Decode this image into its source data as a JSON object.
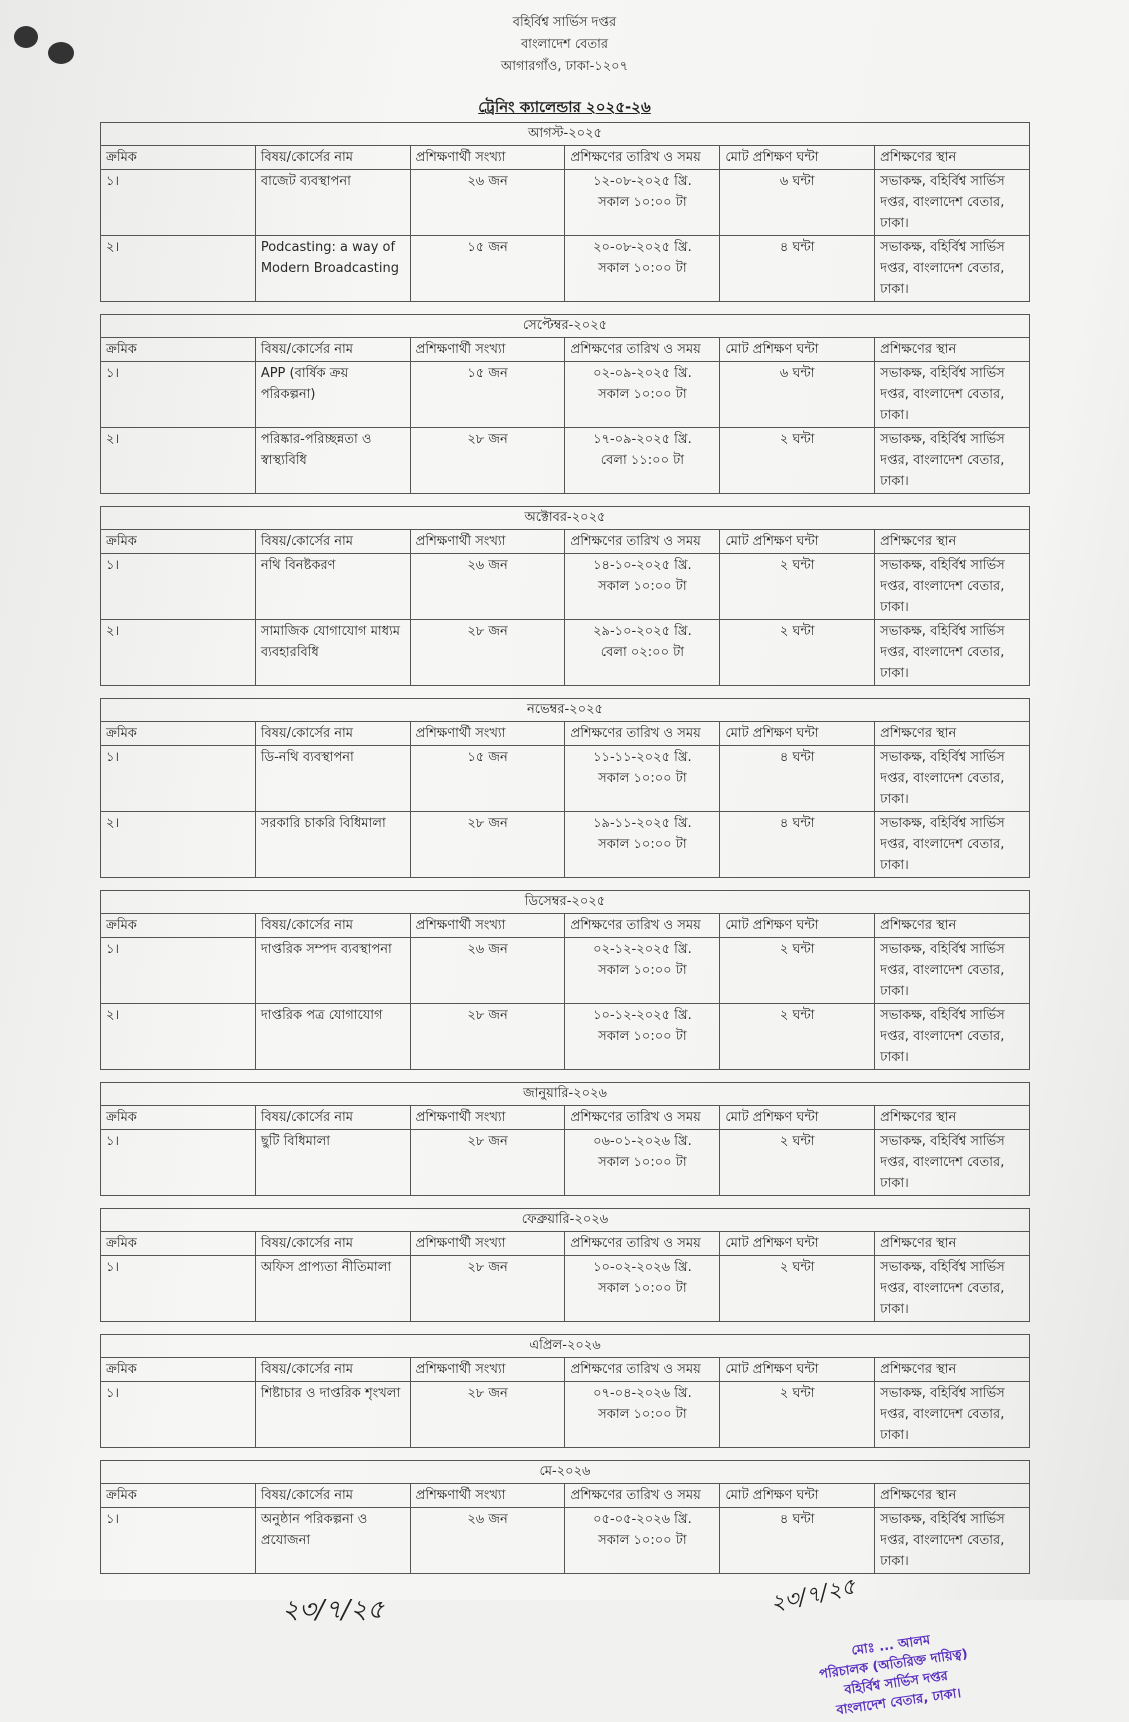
{
  "header": {
    "lines": [
      "বহির্বিশ্ব সার্ভিস দপ্তর",
      "বাংলাদেশ বেতার",
      "আগারগাঁও, ঢাকা-১২০৭"
    ],
    "title": "ট্রেনিং ক্যালেন্ডার ২০২৫-২৬"
  },
  "columns": [
    "ক্রমিক",
    "বিষয়/কোর্সের নাম",
    "প্রশিক্ষণার্থী সংখ্যা",
    "প্রশিক্ষণের তারিখ ও সময়",
    "মোট প্রশিক্ষণ ঘন্টা",
    "প্রশিক্ষণের স্থান"
  ],
  "months": [
    {
      "month": "আগস্ট-২০২৫",
      "rows": [
        {
          "sl": "১।",
          "course": "বাজেট ব্যবস্থাপনা",
          "participants": "২৬ জন",
          "date": "১২-০৮-২০২৫ খ্রি.",
          "time": "সকাল ১০:০০ টা",
          "hours": "৬ ঘন্টা",
          "venue": "সভাকক্ষ, বহির্বিশ্ব সার্ভিস দপ্তর, বাংলাদেশ বেতার, ঢাকা।"
        },
        {
          "sl": "২।",
          "course": "Podcasting: a way of Modern Broadcasting",
          "participants": "১৫ জন",
          "date": "২০-০৮-২০২৫ খ্রি.",
          "time": "সকাল ১০:০০ টা",
          "hours": "৪ ঘন্টা",
          "venue": "সভাকক্ষ, বহির্বিশ্ব সার্ভিস দপ্তর, বাংলাদেশ বেতার, ঢাকা।"
        }
      ]
    },
    {
      "month": "সেপ্টেম্বর-২০২৫",
      "rows": [
        {
          "sl": "১।",
          "course": "APP (বার্ষিক ক্রয় পরিকল্পনা)",
          "participants": "১৫ জন",
          "date": "০২-০৯-২০২৫ খ্রি.",
          "time": "সকাল ১০:০০ টা",
          "hours": "৬ ঘন্টা",
          "venue": "সভাকক্ষ, বহির্বিশ্ব সার্ভিস দপ্তর, বাংলাদেশ বেতার, ঢাকা।"
        },
        {
          "sl": "২।",
          "course": "পরিষ্কার-পরিচ্ছন্নতা ও স্বাস্থ্যবিধি",
          "participants": "২৮ জন",
          "date": "১৭-০৯-২০২৫ খ্রি.",
          "time": "বেলা ১১:০০ টা",
          "hours": "২ ঘন্টা",
          "venue": "সভাকক্ষ, বহির্বিশ্ব সার্ভিস দপ্তর, বাংলাদেশ বেতার, ঢাকা।"
        }
      ]
    },
    {
      "month": "অক্টোবর-২০২৫",
      "rows": [
        {
          "sl": "১।",
          "course": "নথি বিনষ্টকরণ",
          "participants": "২৬ জন",
          "date": "১৪-১০-২০২৫ খ্রি.",
          "time": "সকাল ১০:০০ টা",
          "hours": "২ ঘন্টা",
          "venue": "সভাকক্ষ, বহির্বিশ্ব সার্ভিস দপ্তর, বাংলাদেশ বেতার, ঢাকা।"
        },
        {
          "sl": "২।",
          "course": "সামাজিক যোগাযোগ মাধ্যম ব্যবহারবিধি",
          "participants": "২৮ জন",
          "date": "২৯-১০-২০২৫ খ্রি.",
          "time": "বেলা ০২:০০ টা",
          "hours": "২ ঘন্টা",
          "venue": "সভাকক্ষ, বহির্বিশ্ব সার্ভিস দপ্তর, বাংলাদেশ বেতার, ঢাকা।"
        }
      ]
    },
    {
      "month": "নভেম্বর-২০২৫",
      "rows": [
        {
          "sl": "১।",
          "course": "ডি-নথি ব্যবস্থাপনা",
          "participants": "১৫ জন",
          "date": "১১-১১-২০২৫ খ্রি.",
          "time": "সকাল ১০:০০ টা",
          "hours": "৪ ঘন্টা",
          "venue": "সভাকক্ষ, বহির্বিশ্ব সার্ভিস দপ্তর, বাংলাদেশ বেতার, ঢাকা।"
        },
        {
          "sl": "২।",
          "course": "সরকারি চাকরি বিধিমালা",
          "participants": "২৮ জন",
          "date": "১৯-১১-২০২৫ খ্রি.",
          "time": "সকাল ১০:০০ টা",
          "hours": "৪ ঘন্টা",
          "venue": "সভাকক্ষ, বহির্বিশ্ব সার্ভিস দপ্তর, বাংলাদেশ বেতার, ঢাকা।"
        }
      ]
    },
    {
      "month": "ডিসেম্বর-২০২৫",
      "rows": [
        {
          "sl": "১।",
          "course": "দাপ্তরিক সম্পদ ব্যবস্থাপনা",
          "participants": "২৬ জন",
          "date": "০২-১২-২০২৫ খ্রি.",
          "time": "সকাল ১০:০০ টা",
          "hours": "২ ঘন্টা",
          "venue": "সভাকক্ষ, বহির্বিশ্ব সার্ভিস দপ্তর, বাংলাদেশ বেতার, ঢাকা।"
        },
        {
          "sl": "২।",
          "course": "দাপ্তরিক পত্র যোগাযোগ",
          "participants": "২৮ জন",
          "date": "১০-১২-২০২৫ খ্রি.",
          "time": "সকাল ১০:০০ টা",
          "hours": "২ ঘন্টা",
          "venue": "সভাকক্ষ, বহির্বিশ্ব সার্ভিস দপ্তর, বাংলাদেশ বেতার, ঢাকা।"
        }
      ]
    },
    {
      "month": "জানুয়ারি-২০২৬",
      "rows": [
        {
          "sl": "১।",
          "course": "ছুটি বিধিমালা",
          "participants": "২৮ জন",
          "date": "০৬-০১-২০২৬ খ্রি.",
          "time": "সকাল ১০:০০ টা",
          "hours": "২ ঘন্টা",
          "venue": "সভাকক্ষ, বহির্বিশ্ব সার্ভিস দপ্তর, বাংলাদেশ বেতার, ঢাকা।"
        }
      ]
    },
    {
      "month": "ফেব্রুয়ারি-২০২৬",
      "rows": [
        {
          "sl": "১।",
          "course": "অফিস প্রাপ্যতা নীতিমালা",
          "participants": "২৮ জন",
          "date": "১০-০২-২০২৬ খ্রি.",
          "time": "সকাল ১০:০০ টা",
          "hours": "২ ঘন্টা",
          "venue": "সভাকক্ষ, বহির্বিশ্ব সার্ভিস দপ্তর, বাংলাদেশ বেতার, ঢাকা।"
        }
      ]
    },
    {
      "month": "এপ্রিল-২০২৬",
      "rows": [
        {
          "sl": "১।",
          "course": "শিষ্টাচার ও দাপ্তরিক শৃংখলা",
          "participants": "২৮ জন",
          "date": "০৭-০৪-২০২৬ খ্রি.",
          "time": "সকাল ১০:০০ টা",
          "hours": "২ ঘন্টা",
          "venue": "সভাকক্ষ, বহির্বিশ্ব সার্ভিস দপ্তর, বাংলাদেশ বেতার, ঢাকা।"
        }
      ]
    },
    {
      "month": "মে-২০২৬",
      "rows": [
        {
          "sl": "১।",
          "course": "অনুষ্ঠান পরিকল্পনা ও প্রযোজনা",
          "participants": "২৬ জন",
          "date": "০৫-০৫-২০২৬ খ্রি.",
          "time": "সকাল ১০:০০ টা",
          "hours": "৪ ঘন্টা",
          "venue": "সভাকক্ষ, বহির্বিশ্ব সার্ভিস দপ্তর, বাংলাদেশ বেতার, ঢাকা।"
        }
      ]
    }
  ],
  "signatures": {
    "left_initial": "২৩/৭/২৫",
    "right_date": "২৩/৭/২৫",
    "stamp_lines": [
      "মোঃ ... আলম",
      "পরিচালক (অতিরিক্ত দায়িত্ব)",
      "বহির্বিশ্ব সার্ভিস দপ্তর",
      "বাংলাদেশ বেতার, ঢাকা।"
    ],
    "stamp_color": "#5a2fc0"
  }
}
